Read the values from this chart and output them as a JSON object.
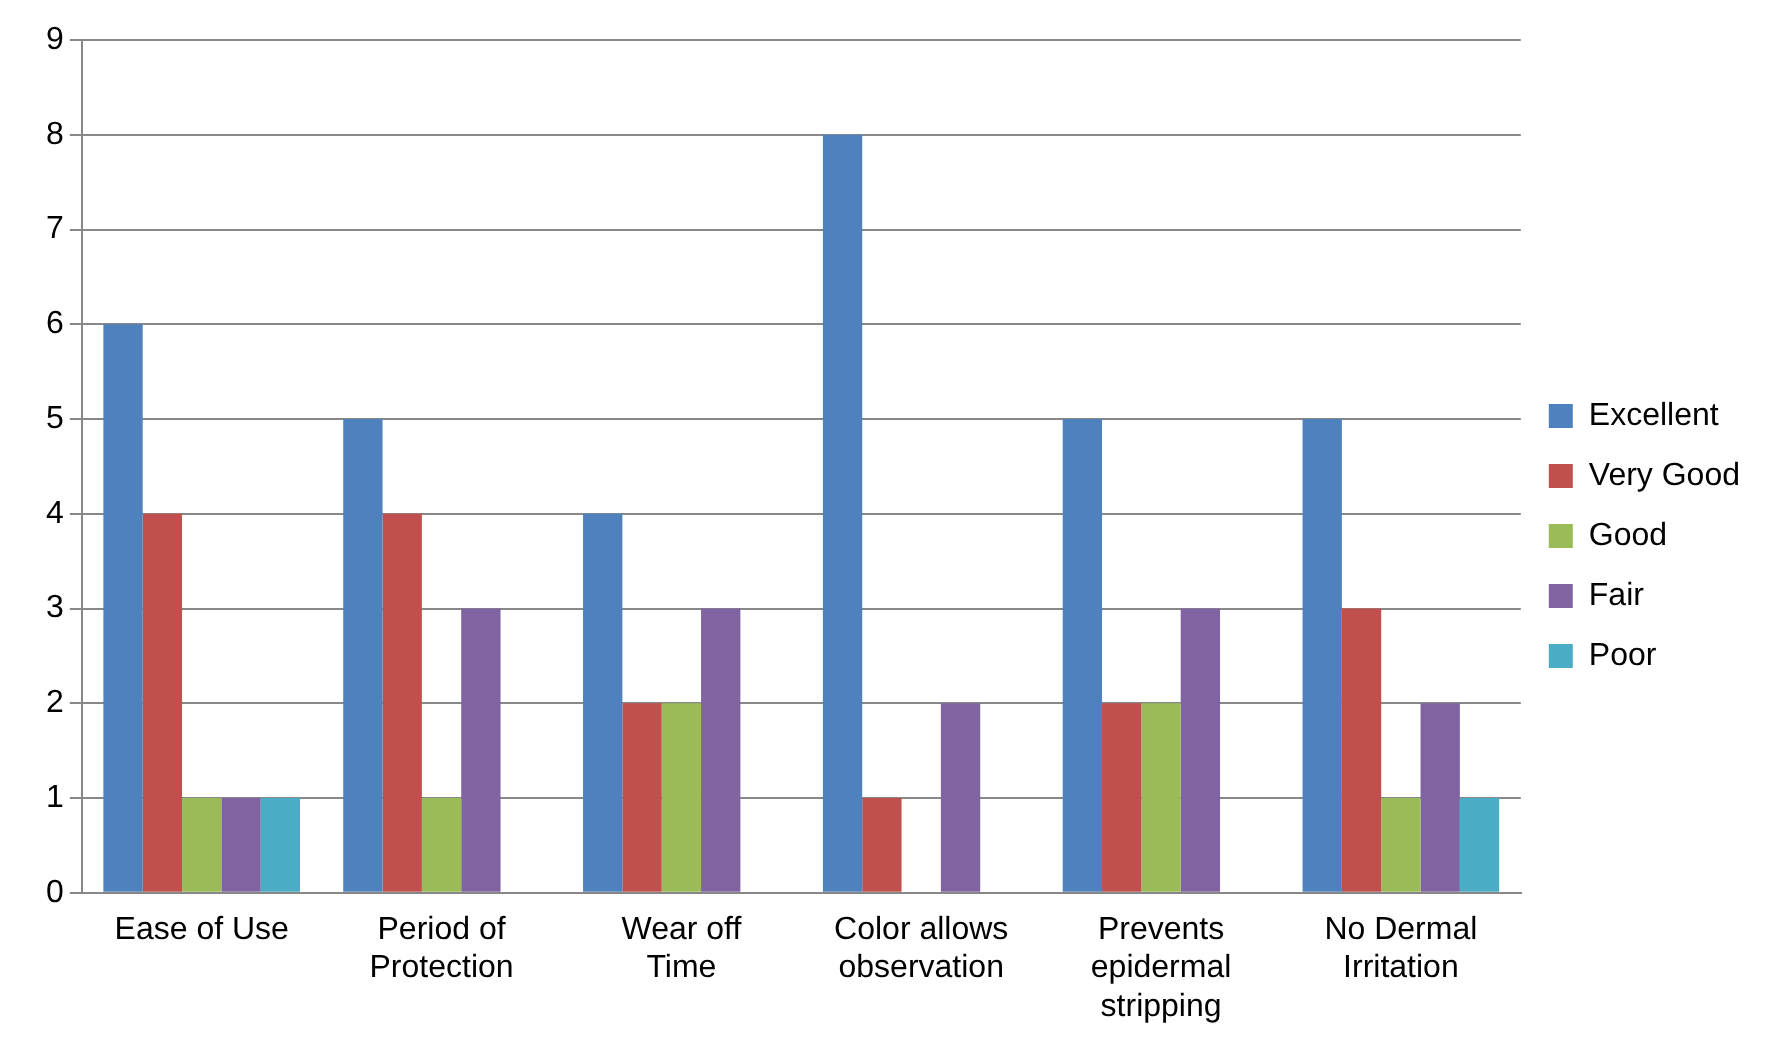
{
  "chart_data": {
    "type": "bar",
    "categories": [
      "Ease of Use",
      "Period of Protection",
      "Wear off Time",
      "Color allows observation",
      "Prevents epidermal stripping",
      "No Dermal Irritation"
    ],
    "series": [
      {
        "name": "Excellent",
        "color": "#4f81bd",
        "values": [
          6,
          5,
          4,
          8,
          5,
          5
        ]
      },
      {
        "name": "Very Good",
        "color": "#c0504d",
        "values": [
          4,
          4,
          2,
          1,
          2,
          3
        ]
      },
      {
        "name": "Good",
        "color": "#9bbb59",
        "values": [
          1,
          1,
          2,
          0,
          2,
          1
        ]
      },
      {
        "name": "Fair",
        "color": "#8064a2",
        "values": [
          1,
          3,
          3,
          2,
          3,
          2
        ]
      },
      {
        "name": "Poor",
        "color": "#4bacc6",
        "values": [
          1,
          0,
          0,
          0,
          0,
          1
        ]
      }
    ],
    "ylim": [
      0,
      9
    ],
    "yticks": [
      0,
      1,
      2,
      3,
      4,
      5,
      6,
      7,
      8,
      9
    ],
    "grid": "y",
    "legend": "right"
  }
}
